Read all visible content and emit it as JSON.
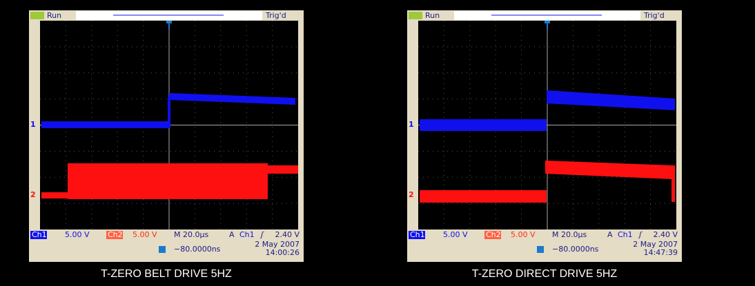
{
  "panels": [
    {
      "status": "Run",
      "trigger_state": "Trig'd",
      "channel_markers": [
        "1",
        "2"
      ],
      "ch1_label": "Ch1",
      "ch1_scale": "5.00 V",
      "ch2_label": "Ch2",
      "ch2_scale": "5.00 V",
      "timebase": "M 20.0µs",
      "trigger_mode": "A",
      "trigger_source": "Ch1",
      "trigger_level": "2.40 V",
      "trigger_offset": "−80.0000ns",
      "date": "2 May 2007",
      "time": "14:00:26",
      "caption": "T-ZERO BELT DRIVE 5HZ"
    },
    {
      "status": "Run",
      "trigger_state": "Trig'd",
      "channel_markers": [
        "1",
        "2"
      ],
      "ch1_label": "Ch1",
      "ch1_scale": "5.00 V",
      "ch2_label": "Ch2",
      "ch2_scale": "5.00 V",
      "timebase": "M 20.0µs",
      "trigger_mode": "A",
      "trigger_source": "Ch1",
      "trigger_level": "2.40 V",
      "trigger_offset": "−80.0000ns",
      "date": "2 May 2007",
      "time": "14:47:39",
      "caption": "T-ZERO DIRECT DRIVE 5HZ"
    }
  ]
}
